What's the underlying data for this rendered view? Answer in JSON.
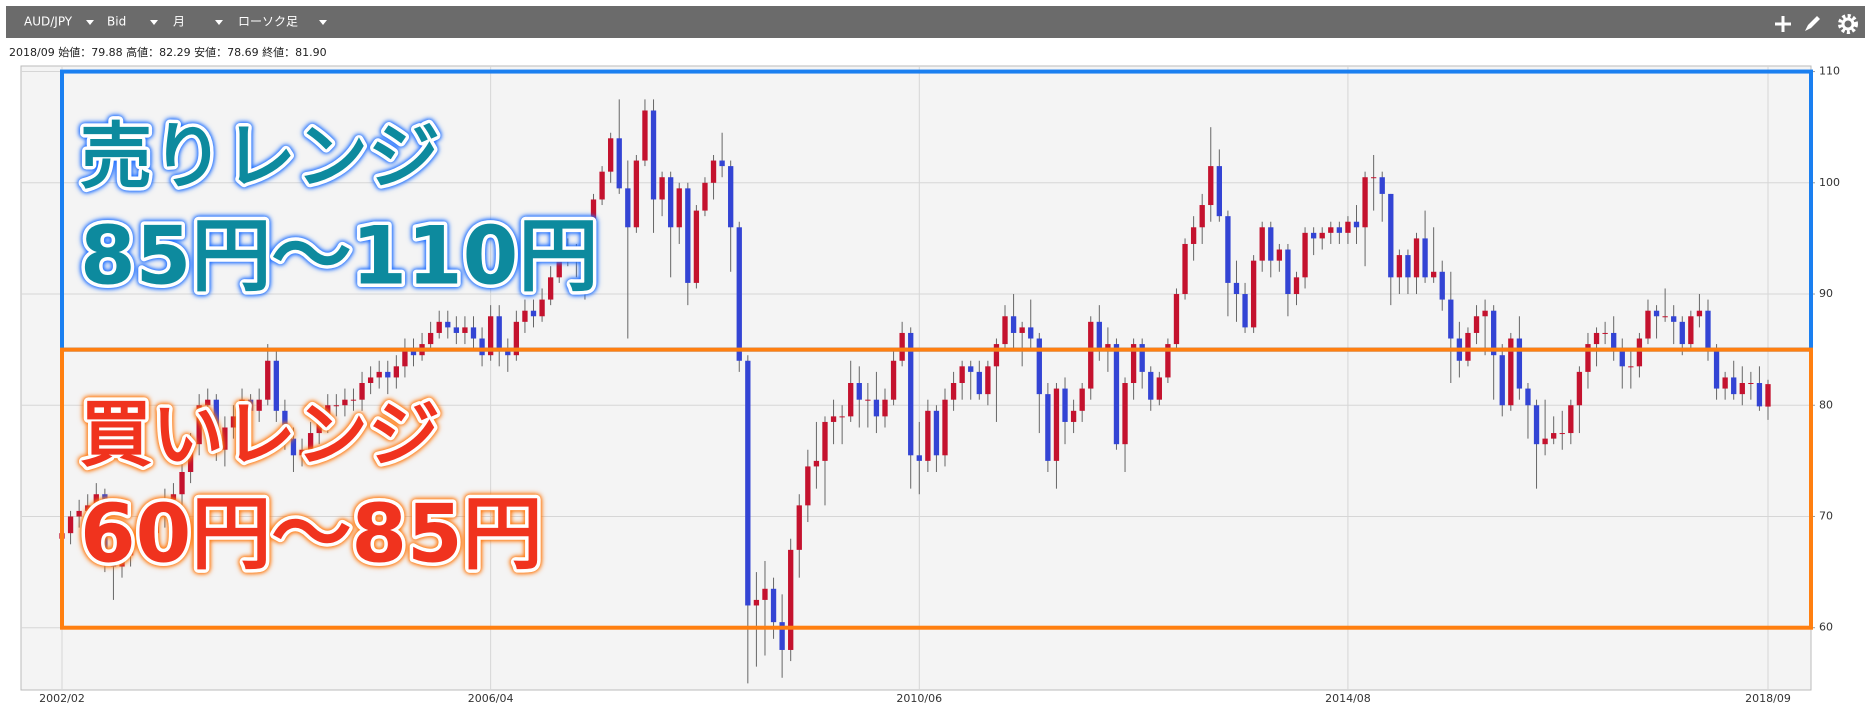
{
  "toolbar": {
    "symbol": "AUD/JPY",
    "price": "Bid",
    "period": "月",
    "chart_style": "ローソク足"
  },
  "info": "2018/09 始値：79.88 高値：82.29 安値：78.69 終値：81.90",
  "chart_data": {
    "type": "candlestick",
    "up_color": "#c4122e",
    "down_color": "#3344d4",
    "ylim": [
      54.4,
      110.5
    ],
    "yticks": [
      60,
      70,
      80,
      90,
      100,
      110
    ],
    "grid": true,
    "categories": [
      "2002/02",
      null,
      null,
      null,
      null,
      null,
      null,
      null,
      null,
      null,
      null,
      null,
      null,
      null,
      null,
      null,
      null,
      null,
      null,
      null,
      null,
      null,
      null,
      null,
      null,
      null,
      null,
      null,
      null,
      null,
      null,
      null,
      null,
      null,
      null,
      null,
      null,
      null,
      null,
      null,
      null,
      null,
      null,
      null,
      null,
      null,
      null,
      null,
      null,
      null,
      "2006/04",
      null,
      null,
      null,
      null,
      null,
      null,
      null,
      null,
      null,
      null,
      null,
      null,
      null,
      null,
      null,
      null,
      null,
      null,
      null,
      null,
      null,
      null,
      null,
      null,
      null,
      null,
      null,
      null,
      null,
      null,
      null,
      null,
      null,
      null,
      null,
      null,
      null,
      null,
      null,
      null,
      null,
      null,
      null,
      null,
      null,
      null,
      null,
      null,
      null,
      "2010/06",
      null,
      null,
      null,
      null,
      null,
      null,
      null,
      null,
      null,
      null,
      null,
      null,
      null,
      null,
      null,
      null,
      null,
      null,
      null,
      null,
      null,
      null,
      null,
      null,
      null,
      null,
      null,
      null,
      null,
      null,
      null,
      null,
      null,
      null,
      null,
      null,
      null,
      null,
      null,
      null,
      null,
      null,
      null,
      null,
      null,
      null,
      null,
      null,
      null,
      "2014/08",
      null,
      null,
      null,
      null,
      null,
      null,
      null,
      null,
      null,
      null,
      null,
      null,
      null,
      null,
      null,
      null,
      null,
      null,
      null,
      null,
      null,
      null,
      null,
      null,
      null,
      null,
      null,
      null,
      null,
      null,
      null,
      null,
      null,
      null,
      null,
      null,
      null,
      null,
      null,
      null,
      null,
      null,
      null,
      null,
      null,
      null,
      null,
      null,
      "2018/09"
    ],
    "ohlc": [
      [
        68.0,
        69.5,
        67.0,
        68.5
      ],
      [
        68.5,
        70.5,
        67.5,
        70.0
      ],
      [
        70.0,
        71.5,
        69.0,
        70.5
      ],
      [
        70.5,
        72.0,
        69.5,
        71.0
      ],
      [
        71.0,
        73.0,
        70.0,
        72.0
      ],
      [
        72.0,
        72.5,
        65.0,
        66.0
      ],
      [
        66.0,
        67.0,
        62.5,
        65.5
      ],
      [
        65.5,
        67.5,
        64.5,
        66.5
      ],
      [
        66.5,
        69.0,
        65.5,
        68.0
      ],
      [
        68.0,
        70.0,
        67.0,
        69.0
      ],
      [
        69.0,
        70.0,
        67.5,
        68.5
      ],
      [
        68.5,
        71.0,
        67.5,
        70.0
      ],
      [
        70.0,
        72.5,
        69.0,
        71.5
      ],
      [
        71.5,
        73.0,
        70.0,
        72.0
      ],
      [
        72.0,
        75.0,
        71.0,
        74.0
      ],
      [
        74.0,
        77.5,
        73.0,
        76.5
      ],
      [
        76.5,
        81.0,
        75.5,
        80.0
      ],
      [
        80.0,
        81.5,
        78.5,
        80.5
      ],
      [
        80.5,
        81.0,
        75.0,
        76.0
      ],
      [
        76.0,
        79.0,
        74.5,
        78.0
      ],
      [
        78.0,
        80.0,
        77.0,
        79.0
      ],
      [
        79.0,
        81.5,
        78.0,
        80.5
      ],
      [
        80.5,
        81.0,
        78.0,
        79.5
      ],
      [
        79.5,
        81.5,
        78.5,
        80.5
      ],
      [
        80.5,
        85.5,
        80.0,
        84.0
      ],
      [
        84.0,
        85.0,
        78.5,
        79.5
      ],
      [
        79.5,
        80.5,
        76.0,
        77.0
      ],
      [
        77.0,
        78.0,
        74.0,
        75.5
      ],
      [
        75.5,
        77.0,
        74.5,
        76.0
      ],
      [
        76.0,
        78.5,
        75.0,
        77.5
      ],
      [
        77.5,
        79.5,
        76.5,
        78.5
      ],
      [
        78.5,
        81.0,
        77.5,
        80.0
      ],
      [
        80.0,
        81.0,
        79.0,
        80.0
      ],
      [
        80.0,
        81.5,
        79.0,
        80.5
      ],
      [
        80.5,
        81.5,
        79.5,
        80.5
      ],
      [
        80.5,
        83.0,
        79.5,
        82.0
      ],
      [
        82.0,
        83.5,
        81.0,
        82.5
      ],
      [
        82.5,
        84.0,
        81.5,
        83.0
      ],
      [
        83.0,
        84.0,
        81.0,
        82.5
      ],
      [
        82.5,
        84.5,
        81.5,
        83.5
      ],
      [
        83.5,
        86.0,
        82.5,
        85.0
      ],
      [
        85.0,
        86.0,
        83.5,
        84.5
      ],
      [
        84.5,
        86.5,
        84.0,
        85.5
      ],
      [
        85.5,
        87.5,
        85.0,
        86.5
      ],
      [
        86.5,
        88.5,
        86.0,
        87.5
      ],
      [
        87.5,
        88.5,
        86.0,
        87.0
      ],
      [
        87.0,
        88.0,
        85.5,
        86.5
      ],
      [
        86.5,
        88.0,
        85.5,
        87.0
      ],
      [
        87.0,
        88.0,
        85.0,
        86.0
      ],
      [
        86.0,
        87.0,
        83.5,
        84.5
      ],
      [
        84.5,
        89.0,
        84.0,
        88.0
      ],
      [
        88.0,
        89.0,
        83.5,
        85.0
      ],
      [
        85.0,
        86.0,
        83.0,
        84.5
      ],
      [
        84.5,
        88.5,
        84.0,
        87.5
      ],
      [
        87.5,
        89.5,
        86.5,
        88.5
      ],
      [
        88.5,
        89.5,
        87.0,
        88.0
      ],
      [
        88.0,
        90.5,
        87.5,
        89.5
      ],
      [
        89.5,
        92.5,
        89.0,
        91.5
      ],
      [
        91.5,
        94.5,
        91.0,
        93.8
      ],
      [
        93.8,
        95.0,
        92.5,
        93.5
      ],
      [
        93.5,
        94.5,
        91.5,
        93.0
      ],
      [
        93.0,
        96.0,
        89.5,
        95.0
      ],
      [
        95.0,
        99.0,
        94.5,
        98.5
      ],
      [
        98.5,
        101.5,
        98.0,
        101.0
      ],
      [
        101.0,
        104.5,
        100.0,
        104.0
      ],
      [
        104.0,
        107.5,
        99.0,
        99.5
      ],
      [
        99.5,
        102.0,
        86.0,
        96.0
      ],
      [
        96.0,
        102.5,
        95.5,
        102.0
      ],
      [
        102.0,
        107.5,
        101.5,
        106.5
      ],
      [
        106.5,
        107.5,
        95.5,
        98.5
      ],
      [
        98.5,
        101.0,
        97.0,
        100.5
      ],
      [
        100.5,
        101.0,
        91.5,
        96.0
      ],
      [
        96.0,
        100.0,
        94.5,
        99.5
      ],
      [
        99.5,
        100.0,
        89.0,
        91.0
      ],
      [
        91.0,
        98.0,
        90.5,
        97.5
      ],
      [
        97.5,
        100.5,
        97.0,
        100.0
      ],
      [
        100.0,
        102.5,
        98.5,
        102.0
      ],
      [
        102.0,
        104.5,
        100.5,
        101.5
      ],
      [
        101.5,
        102.0,
        92.0,
        96.0
      ],
      [
        96.0,
        96.5,
        83.0,
        84.0
      ],
      [
        84.0,
        84.5,
        55.0,
        62.0
      ],
      [
        62.0,
        65.0,
        56.5,
        62.5
      ],
      [
        62.5,
        66.0,
        57.5,
        63.5
      ],
      [
        63.5,
        64.5,
        59.0,
        60.5
      ],
      [
        60.5,
        63.0,
        55.5,
        58.0
      ],
      [
        58.0,
        68.0,
        57.0,
        67.0
      ],
      [
        67.0,
        72.0,
        64.5,
        71.0
      ],
      [
        71.0,
        76.0,
        69.5,
        74.5
      ],
      [
        74.5,
        78.5,
        72.5,
        75.0
      ],
      [
        75.0,
        79.0,
        71.0,
        78.5
      ],
      [
        78.5,
        80.5,
        76.5,
        79.0
      ],
      [
        79.0,
        80.0,
        76.5,
        79.0
      ],
      [
        79.0,
        84.0,
        78.5,
        82.0
      ],
      [
        82.0,
        83.5,
        78.0,
        80.5
      ],
      [
        80.5,
        82.0,
        78.0,
        80.5
      ],
      [
        80.5,
        83.0,
        77.5,
        79.0
      ],
      [
        79.0,
        81.5,
        78.0,
        80.5
      ],
      [
        80.5,
        85.0,
        80.0,
        84.0
      ],
      [
        84.0,
        87.5,
        83.5,
        86.5
      ],
      [
        86.5,
        87.0,
        72.5,
        75.5
      ],
      [
        75.5,
        78.5,
        72.0,
        75.0
      ],
      [
        75.0,
        80.5,
        74.0,
        79.5
      ],
      [
        79.5,
        80.0,
        74.0,
        75.5
      ],
      [
        75.5,
        81.5,
        74.5,
        80.5
      ],
      [
        80.5,
        83.0,
        79.5,
        82.0
      ],
      [
        82.0,
        84.0,
        80.5,
        83.5
      ],
      [
        83.5,
        84.0,
        80.5,
        83.0
      ],
      [
        83.0,
        84.0,
        80.5,
        81.0
      ],
      [
        81.0,
        84.0,
        80.0,
        83.5
      ],
      [
        83.5,
        86.0,
        78.5,
        85.5
      ],
      [
        85.5,
        89.0,
        85.0,
        88.0
      ],
      [
        88.0,
        90.0,
        85.0,
        86.5
      ],
      [
        86.5,
        87.5,
        83.5,
        87.0
      ],
      [
        87.0,
        89.5,
        85.0,
        86.0
      ],
      [
        86.0,
        86.5,
        77.5,
        81.0
      ],
      [
        81.0,
        82.0,
        74.0,
        75.0
      ],
      [
        75.0,
        82.0,
        72.5,
        81.5
      ],
      [
        81.5,
        82.5,
        76.5,
        78.5
      ],
      [
        78.5,
        80.5,
        77.5,
        79.5
      ],
      [
        79.5,
        82.0,
        78.5,
        81.5
      ],
      [
        81.5,
        88.0,
        80.5,
        87.5
      ],
      [
        87.5,
        89.0,
        84.0,
        85.0
      ],
      [
        85.0,
        87.0,
        83.0,
        85.5
      ],
      [
        85.5,
        86.0,
        76.0,
        76.5
      ],
      [
        76.5,
        82.5,
        74.0,
        82.0
      ],
      [
        82.0,
        86.0,
        80.5,
        85.5
      ],
      [
        85.5,
        86.0,
        81.5,
        83.0
      ],
      [
        83.0,
        83.5,
        79.5,
        80.5
      ],
      [
        80.5,
        83.0,
        80.0,
        82.5
      ],
      [
        82.5,
        86.0,
        82.0,
        85.5
      ],
      [
        85.5,
        90.5,
        85.0,
        90.0
      ],
      [
        90.0,
        95.0,
        89.5,
        94.5
      ],
      [
        94.5,
        97.0,
        93.0,
        96.0
      ],
      [
        96.0,
        99.0,
        94.5,
        98.0
      ],
      [
        98.0,
        105.0,
        96.5,
        101.5
      ],
      [
        101.5,
        103.0,
        96.5,
        97.0
      ],
      [
        97.0,
        97.5,
        88.0,
        91.0
      ],
      [
        91.0,
        93.0,
        87.5,
        90.0
      ],
      [
        90.0,
        91.0,
        86.5,
        87.0
      ],
      [
        87.0,
        93.5,
        86.5,
        93.0
      ],
      [
        93.0,
        96.5,
        92.0,
        96.0
      ],
      [
        96.0,
        96.5,
        91.5,
        93.0
      ],
      [
        93.0,
        94.5,
        92.0,
        94.0
      ],
      [
        94.0,
        94.5,
        88.0,
        90.0
      ],
      [
        90.0,
        92.0,
        89.0,
        91.5
      ],
      [
        91.5,
        96.0,
        90.5,
        95.5
      ],
      [
        95.5,
        96.0,
        93.5,
        95.0
      ],
      [
        95.0,
        96.0,
        94.0,
        95.5
      ],
      [
        95.5,
        96.5,
        94.5,
        96.0
      ],
      [
        96.0,
        96.5,
        94.5,
        95.5
      ],
      [
        95.5,
        97.0,
        94.5,
        96.5
      ],
      [
        96.5,
        98.0,
        94.5,
        96.0
      ],
      [
        96.0,
        101.0,
        92.5,
        100.5
      ],
      [
        100.5,
        102.5,
        97.5,
        100.5
      ],
      [
        100.5,
        101.0,
        96.5,
        99.0
      ],
      [
        99.0,
        99.0,
        89.0,
        91.5
      ],
      [
        91.5,
        94.0,
        90.0,
        93.5
      ],
      [
        93.5,
        94.0,
        90.0,
        91.5
      ],
      [
        91.5,
        95.5,
        90.0,
        95.0
      ],
      [
        95.0,
        97.5,
        91.0,
        91.5
      ],
      [
        91.5,
        96.0,
        91.0,
        92.0
      ],
      [
        92.0,
        93.0,
        88.5,
        89.5
      ],
      [
        89.5,
        92.0,
        82.0,
        86.0
      ],
      [
        86.0,
        87.5,
        82.5,
        84.0
      ],
      [
        84.0,
        87.0,
        83.5,
        86.5
      ],
      [
        86.5,
        89.0,
        85.5,
        88.0
      ],
      [
        88.0,
        89.5,
        84.5,
        88.5
      ],
      [
        88.5,
        89.0,
        80.5,
        84.5
      ],
      [
        84.5,
        85.5,
        79.0,
        80.0
      ],
      [
        80.0,
        86.5,
        79.5,
        86.0
      ],
      [
        86.0,
        88.0,
        80.5,
        81.5
      ],
      [
        81.5,
        82.0,
        77.0,
        80.0
      ],
      [
        80.0,
        80.5,
        72.5,
        76.5
      ],
      [
        76.5,
        80.5,
        75.5,
        77.0
      ],
      [
        77.0,
        79.0,
        76.5,
        77.5
      ],
      [
        77.5,
        79.5,
        76.0,
        77.5
      ],
      [
        77.5,
        80.5,
        76.5,
        80.0
      ],
      [
        80.0,
        83.5,
        77.5,
        83.0
      ],
      [
        83.0,
        86.5,
        81.5,
        85.5
      ],
      [
        85.5,
        87.0,
        83.5,
        86.5
      ],
      [
        86.5,
        87.5,
        85.5,
        86.5
      ],
      [
        86.5,
        88.0,
        84.0,
        85.0
      ],
      [
        85.0,
        86.0,
        81.5,
        83.5
      ],
      [
        83.5,
        85.0,
        81.5,
        83.5
      ],
      [
        83.5,
        86.5,
        82.5,
        86.0
      ],
      [
        86.0,
        89.5,
        85.5,
        88.5
      ],
      [
        88.5,
        89.0,
        86.0,
        88.0
      ],
      [
        88.0,
        90.5,
        87.5,
        88.0
      ],
      [
        88.0,
        89.0,
        85.5,
        87.5
      ],
      [
        87.5,
        88.0,
        84.5,
        85.5
      ],
      [
        85.5,
        88.5,
        85.0,
        88.0
      ],
      [
        88.0,
        90.0,
        87.0,
        88.5
      ],
      [
        88.5,
        89.5,
        84.0,
        85.0
      ],
      [
        85.0,
        85.5,
        80.5,
        81.5
      ],
      [
        81.5,
        83.0,
        80.5,
        82.5
      ],
      [
        82.5,
        84.0,
        80.5,
        81.0
      ],
      [
        81.0,
        83.5,
        80.0,
        82.0
      ],
      [
        82.0,
        83.0,
        80.5,
        82.0
      ],
      [
        82.0,
        83.5,
        79.5,
        79.9
      ],
      [
        79.88,
        82.29,
        78.69,
        81.9
      ]
    ],
    "bands": [
      {
        "label": "売りレンジ",
        "range_label": "85円～110円",
        "range": [
          85,
          110
        ],
        "color": "#1a7ff0"
      },
      {
        "label": "買いレンジ",
        "range_label": "60円～85円",
        "range": [
          60,
          85
        ],
        "color": "#ff7f10"
      }
    ]
  }
}
